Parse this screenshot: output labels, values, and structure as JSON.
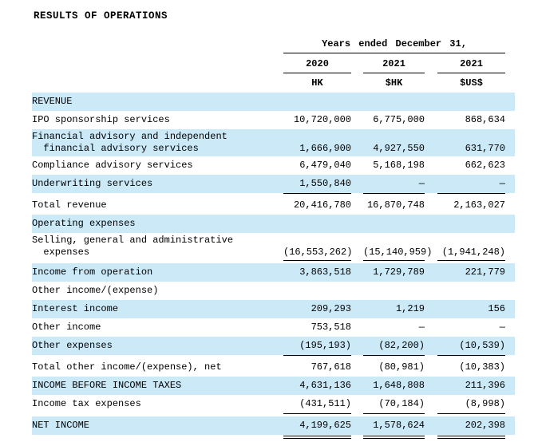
{
  "title": "RESULTS OF OPERATIONS",
  "colors": {
    "highlight": "#cce9f8"
  },
  "table": {
    "period_header": "Years ended December 31,",
    "columns": [
      {
        "year": "2020",
        "currency": "HK"
      },
      {
        "year": "2021",
        "currency": "$HK"
      },
      {
        "year": "2021",
        "currency": "$US$"
      }
    ],
    "rows": [
      {
        "label": "REVENUE",
        "c1": "",
        "c2": "",
        "c3": ""
      },
      {
        "label": "IPO sponsorship services",
        "c1": "10,720,000",
        "c2": "6,775,000",
        "c3": "868,634"
      },
      {
        "label": "Financial advisory and independent\n  financial advisory services",
        "c1": "1,666,900",
        "c2": "4,927,550",
        "c3": "631,770"
      },
      {
        "label": "Compliance advisory services",
        "c1": "6,479,040",
        "c2": "5,168,198",
        "c3": "662,623"
      },
      {
        "label": "Underwriting services",
        "c1": "1,550,840",
        "c2": "—",
        "c3": "—"
      },
      {
        "label": "Total revenue",
        "c1": "20,416,780",
        "c2": "16,870,748",
        "c3": "2,163,027"
      },
      {
        "label": "Operating expenses",
        "c1": "",
        "c2": "",
        "c3": ""
      },
      {
        "label": "Selling, general and administrative\n  expenses",
        "c1": "(16,553,262)",
        "c2": "(15,140,959)",
        "c3": "(1,941,248)"
      },
      {
        "label": "Income from operation",
        "c1": "3,863,518",
        "c2": "1,729,789",
        "c3": "221,779"
      },
      {
        "label": "Other income/(expense)",
        "c1": "",
        "c2": "",
        "c3": ""
      },
      {
        "label": "Interest income",
        "c1": "209,293",
        "c2": "1,219",
        "c3": "156"
      },
      {
        "label": "Other income",
        "c1": "753,518",
        "c2": "—",
        "c3": "—"
      },
      {
        "label": "Other expenses",
        "c1": "(195,193)",
        "c2": "(82,200)",
        "c3": "(10,539)"
      },
      {
        "label": "Total other income/(expense), net",
        "c1": "767,618",
        "c2": "(80,981)",
        "c3": "(10,383)"
      },
      {
        "label": "INCOME BEFORE INCOME TAXES",
        "c1": "4,631,136",
        "c2": "1,648,808",
        "c3": "211,396"
      },
      {
        "label": "Income tax expenses",
        "c1": "(431,511)",
        "c2": "(70,184)",
        "c3": "(8,998)"
      },
      {
        "label": "NET INCOME",
        "c1": "4,199,625",
        "c2": "1,578,624",
        "c3": "202,398"
      }
    ]
  }
}
